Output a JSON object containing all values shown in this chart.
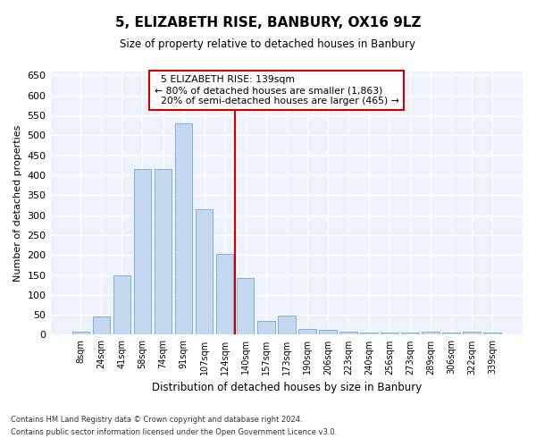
{
  "title": "5, ELIZABETH RISE, BANBURY, OX16 9LZ",
  "subtitle": "Size of property relative to detached houses in Banbury",
  "xlabel": "Distribution of detached houses by size in Banbury",
  "ylabel": "Number of detached properties",
  "categories": [
    "8sqm",
    "24sqm",
    "41sqm",
    "58sqm",
    "74sqm",
    "91sqm",
    "107sqm",
    "124sqm",
    "140sqm",
    "157sqm",
    "173sqm",
    "190sqm",
    "206sqm",
    "223sqm",
    "240sqm",
    "256sqm",
    "273sqm",
    "289sqm",
    "306sqm",
    "322sqm",
    "339sqm"
  ],
  "values": [
    8,
    45,
    150,
    415,
    415,
    530,
    315,
    203,
    143,
    35,
    48,
    15,
    13,
    8,
    5,
    5,
    5,
    8,
    5,
    8,
    5
  ],
  "bar_color": "#c5d8f0",
  "bar_edgecolor": "#6aaad4",
  "marker_label": "5 ELIZABETH RISE: 139sqm",
  "pct_smaller": "80% of detached houses are smaller (1,863)",
  "pct_larger": "20% of semi-detached houses are larger (465)",
  "vline_color": "#cc0000",
  "annotation_box_edgecolor": "#cc0000",
  "ylim": [
    0,
    660
  ],
  "yticks": [
    0,
    50,
    100,
    150,
    200,
    250,
    300,
    350,
    400,
    450,
    500,
    550,
    600,
    650
  ],
  "bg_color": "#eef2fb",
  "grid_color": "#ffffff",
  "footer1": "Contains HM Land Registry data © Crown copyright and database right 2024.",
  "footer2": "Contains public sector information licensed under the Open Government Licence v3.0."
}
